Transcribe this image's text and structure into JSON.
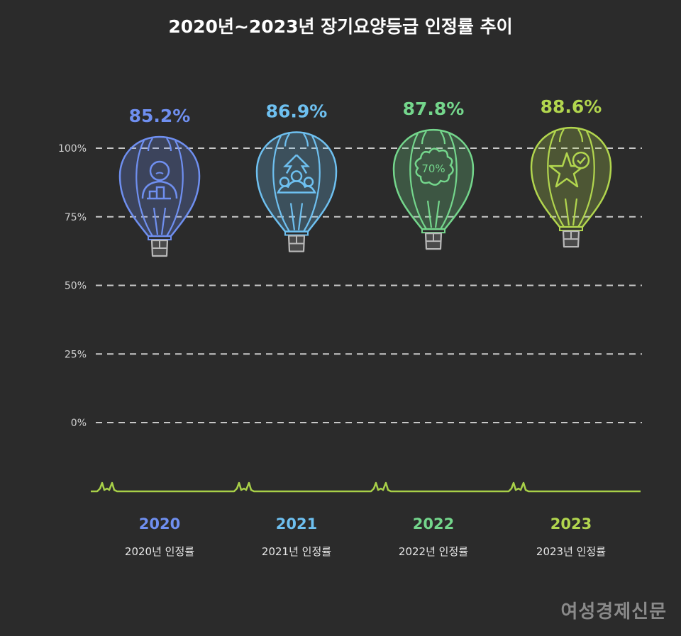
{
  "title": "2020년~2023년 장기요양등급 인정률 추이",
  "watermark": "여성경제신문",
  "chart_data": {
    "type": "bar",
    "title": "2020년~2023년 장기요양등급 인정률 추이",
    "categories": [
      "2020",
      "2021",
      "2022",
      "2023"
    ],
    "values": [
      85.2,
      86.9,
      87.8,
      88.6
    ],
    "value_labels": [
      "85.2%",
      "86.9%",
      "87.8%",
      "88.6%"
    ],
    "sublabels": [
      "2020년 인정률",
      "2021년 인정률",
      "2022년 인정률",
      "2023년 인정률"
    ],
    "icons": [
      "person-chart-icon",
      "people-arrow-up-icon",
      "cloud-70-percent-icon",
      "star-check-icon"
    ],
    "colors": [
      "#6f8ff0",
      "#6ec0f0",
      "#74d68c",
      "#b2d64e"
    ],
    "yticks": [
      "0%",
      "25%",
      "50%",
      "75%",
      "100%"
    ],
    "ylim": [
      0,
      100
    ],
    "grid": true,
    "mark": "hot-air-balloon"
  }
}
